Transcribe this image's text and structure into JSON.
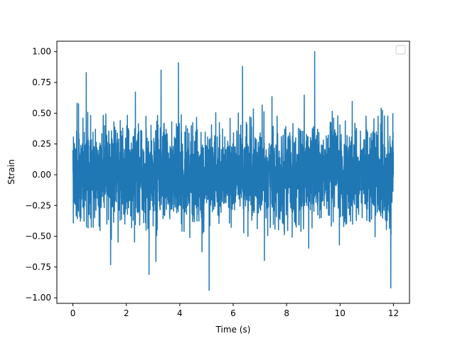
{
  "chart_data": {
    "type": "line",
    "xlabel": "Time (s)",
    "ylabel": "Strain",
    "xlim": [
      -0.6,
      12.6
    ],
    "ylim": [
      -1.045,
      1.085
    ],
    "x_ticks": [
      0,
      2,
      4,
      6,
      8,
      10,
      12
    ],
    "x_tick_labels": [
      "0",
      "2",
      "4",
      "6",
      "8",
      "10",
      "12"
    ],
    "y_ticks": [
      -1.0,
      -0.75,
      -0.5,
      -0.25,
      0.0,
      0.25,
      0.5,
      0.75,
      1.0
    ],
    "y_tick_labels": [
      "−1.00",
      "−0.75",
      "−0.50",
      "−0.25",
      "0.00",
      "0.25",
      "0.50",
      "0.75",
      "1.00"
    ],
    "legend": {
      "placement": "top-right",
      "entries": []
    },
    "grid": false,
    "series": [
      {
        "color": "#1f77b4",
        "x_range": [
          0,
          12
        ],
        "y_range": [
          -0.94,
          1.0
        ],
        "typical_band": [
          -0.4,
          0.4
        ],
        "description_points": [
          {
            "x": 0.0,
            "y": 0.2
          },
          {
            "x": 0.5,
            "y": 0.83
          },
          {
            "x": 2.85,
            "y": -0.81
          },
          {
            "x": 3.3,
            "y": 0.85
          },
          {
            "x": 3.95,
            "y": 0.91
          },
          {
            "x": 5.1,
            "y": -0.94
          },
          {
            "x": 6.35,
            "y": 0.88
          },
          {
            "x": 9.05,
            "y": 1.0
          },
          {
            "x": 11.9,
            "y": -0.92
          },
          {
            "x": 12.0,
            "y": 0.0
          }
        ]
      }
    ]
  }
}
